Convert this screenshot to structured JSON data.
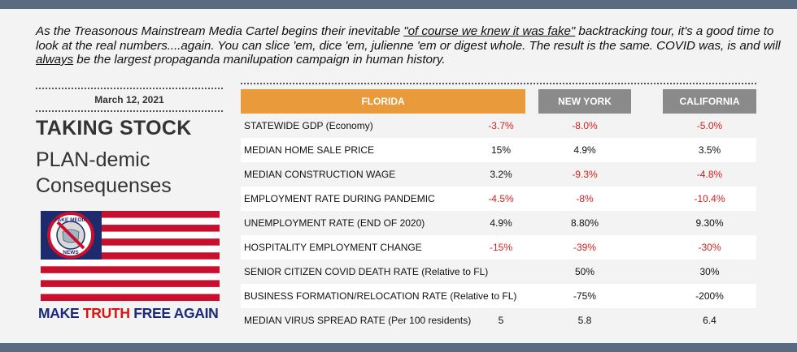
{
  "intro": {
    "part1": "As the Treasonous Mainstream Media Cartel begins their inevitable ",
    "quote": "\"of course we knew it was fake\"",
    "part2": " backtracking tour, it's a good time to look at the real numbers....again.  You can slice 'em, dice 'em, julienne 'em or digest whole.  The result is the same.  COVID was, is and will ",
    "always": "always",
    "part3": " be the largest propaganda manilupation campaign in human history."
  },
  "date": "March 12, 2021",
  "title": {
    "line1": "TAKING STOCK",
    "line2": "PLAN-demic",
    "line3": "Consequenses"
  },
  "badge": {
    "top": "FAKE MEDIA",
    "bottom": "NEWS"
  },
  "slogan": {
    "make": "MAKE",
    "truth": "TRUTH",
    "rest": "FREE AGAIN"
  },
  "colors": {
    "florida_header": "#e99a3a",
    "other_header": "#8a8a8a",
    "negative": "#d42020",
    "frame_bar": "#5a6a80",
    "slogan_blue": "#1a2a7a",
    "slogan_red": "#dd1111"
  },
  "table": {
    "headers": [
      "FLORIDA",
      "NEW YORK",
      "CALIFORNIA"
    ],
    "rows": [
      {
        "label": "STATEWIDE GDP (Economy)",
        "fl": "-3.7%",
        "ny": "-8.0%",
        "ca": "-5.0%",
        "neg": [
          true,
          true,
          true
        ]
      },
      {
        "label": "MEDIAN HOME SALE PRICE",
        "fl": "15%",
        "ny": "4.9%",
        "ca": "3.5%",
        "neg": [
          false,
          false,
          false
        ]
      },
      {
        "label": "MEDIAN CONSTRUCTION WAGE",
        "fl": "3.2%",
        "ny": "-9.3%",
        "ca": "-4.8%",
        "neg": [
          false,
          true,
          true
        ]
      },
      {
        "label": "EMPLOYMENT RATE DURING PANDEMIC",
        "fl": "-4.5%",
        "ny": "-8%",
        "ca": "-10.4%",
        "neg": [
          true,
          true,
          true
        ]
      },
      {
        "label": "UNEMPLOYMENT RATE (END OF 2020)",
        "fl": "4.9%",
        "ny": "8.80%",
        "ca": "9.30%",
        "neg": [
          false,
          false,
          false
        ]
      },
      {
        "label": "HOSPITALITY EMPLOYMENT CHANGE",
        "fl": "-15%",
        "ny": "-39%",
        "ca": "-30%",
        "neg": [
          true,
          true,
          true
        ]
      },
      {
        "label": "SENIOR CITIZEN COVID DEATH RATE (Relative to FL)",
        "fl": "",
        "ny": "50%",
        "ca": "30%",
        "neg": [
          false,
          false,
          false
        ]
      },
      {
        "label": "BUSINESS FORMATION/RELOCATION RATE (Relative to FL)",
        "fl": "",
        "ny": "-75%",
        "ca": "-200%",
        "neg": [
          false,
          false,
          false
        ]
      },
      {
        "label": "MEDIAN VIRUS SPREAD RATE (Per 100 residents)",
        "fl": "5",
        "ny": "5.8",
        "ca": "6.4",
        "neg": [
          false,
          false,
          false
        ]
      }
    ]
  }
}
